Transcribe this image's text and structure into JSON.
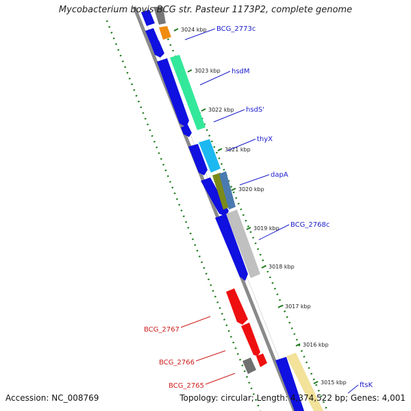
{
  "title": "Mycobacterium bovis BCG str. Pasteur 1173P2, complete genome",
  "accession": "Accession: NC_008769",
  "footer_info": "Topology: circular; Length: 4,374,522 bp; Genes: 4,001",
  "colors": {
    "backbone": "#8a8a8a",
    "tick": "#1a7a1a",
    "forward_label": "#1a1acc",
    "reverse_label": "#cc1a1a"
  },
  "ticks": [
    {
      "label": "3024 kbp",
      "kbp": 3024
    },
    {
      "label": "3023 kbp",
      "kbp": 3023
    },
    {
      "label": "3022 kbp",
      "kbp": 3022
    },
    {
      "label": "3021 kbp",
      "kbp": 3021
    },
    {
      "label": "3020 kbp",
      "kbp": 3020
    },
    {
      "label": "3019 kbp",
      "kbp": 3019
    },
    {
      "label": "3018 kbp",
      "kbp": 3018
    },
    {
      "label": "3017 kbp",
      "kbp": 3017
    },
    {
      "label": "3016 kbp",
      "kbp": 3016
    },
    {
      "label": "3015 kbp",
      "kbp": 3015
    }
  ],
  "gene_labels": [
    {
      "text": "BCG_2773c",
      "strand": "forward"
    },
    {
      "text": "hsdM",
      "strand": "forward"
    },
    {
      "text": "hsdS'",
      "strand": "forward"
    },
    {
      "text": "thyX",
      "strand": "forward"
    },
    {
      "text": "dapA",
      "strand": "forward"
    },
    {
      "text": "BCG_2768c",
      "strand": "forward"
    },
    {
      "text": "ftsK",
      "strand": "forward"
    },
    {
      "text": "BCG_2767",
      "strand": "reverse"
    },
    {
      "text": "BCG_2766",
      "strand": "reverse"
    },
    {
      "text": "BCG_2765",
      "strand": "reverse"
    }
  ]
}
